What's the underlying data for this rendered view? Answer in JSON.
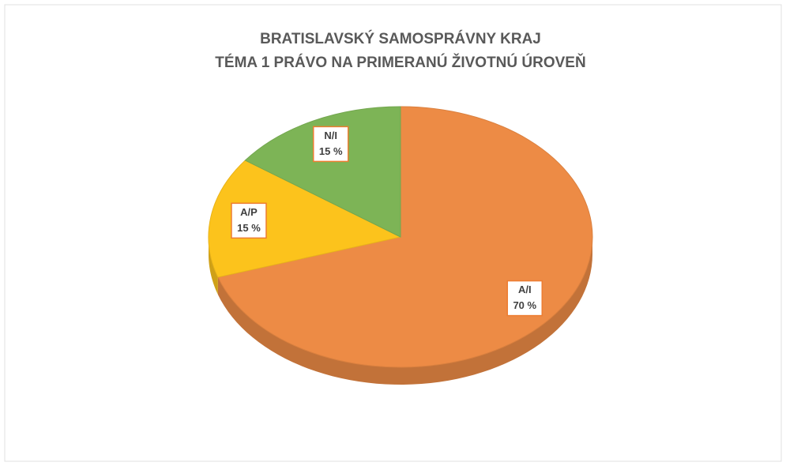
{
  "chart_data": {
    "type": "pie",
    "title": "BRATISLAVSKÝ SAMOSPRÁVNY KRAJ",
    "subtitle": "TÉMA 1 PRÁVO NA PRIMERANÚ ŽIVOTNÚ ÚROVEŇ",
    "categories": [
      "A/I",
      "A/P",
      "N/I"
    ],
    "values": [
      70,
      15,
      15
    ],
    "value_labels": [
      "70 %",
      "15 %",
      "15 %"
    ],
    "colors": [
      "#ed8b45",
      "#fcc31c",
      "#7db456"
    ]
  }
}
